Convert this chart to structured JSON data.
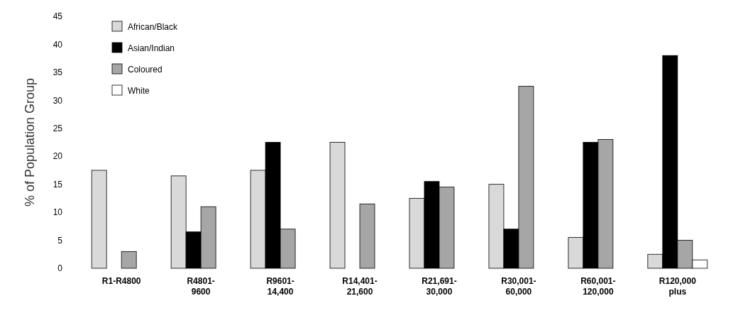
{
  "chart_data": {
    "type": "bar",
    "ylabel": "% of Population Group",
    "categories": [
      "R1-R4800",
      "R4801-\n9600",
      "R9601-\n14,400",
      "R14,401-\n21,600",
      "R21,691-\n30,000",
      "R30,001-\n60,000",
      "R60,001-\n120,000",
      "R120,000\nplus"
    ],
    "series": [
      {
        "name": "African/Black",
        "color": "#d9d9d9",
        "values": [
          17.5,
          16.5,
          17.5,
          22.5,
          12.5,
          15,
          5.5,
          2.5
        ]
      },
      {
        "name": "Asian/Indian",
        "color": "#000000",
        "values": [
          0,
          6.5,
          22.5,
          0,
          15.5,
          7,
          22.5,
          38
        ]
      },
      {
        "name": "Coloured",
        "color": "#a6a6a6",
        "values": [
          3,
          11,
          7,
          11.5,
          14.5,
          32.5,
          23,
          5
        ]
      },
      {
        "name": "White",
        "color": "#ffffff",
        "values": [
          0,
          0,
          0,
          0,
          0,
          0,
          0,
          1.5
        ]
      }
    ],
    "ylim": [
      0,
      45
    ],
    "yticks": [
      0,
      5,
      10,
      15,
      20,
      25,
      30,
      35,
      40,
      45
    ],
    "legend": "top left",
    "grid": false
  }
}
